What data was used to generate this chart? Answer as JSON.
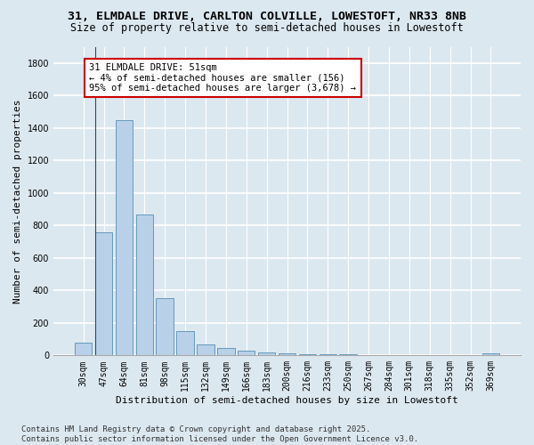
{
  "title_line1": "31, ELMDALE DRIVE, CARLTON COLVILLE, LOWESTOFT, NR33 8NB",
  "title_line2": "Size of property relative to semi-detached houses in Lowestoft",
  "xlabel": "Distribution of semi-detached houses by size in Lowestoft",
  "ylabel": "Number of semi-detached properties",
  "categories": [
    "30sqm",
    "47sqm",
    "64sqm",
    "81sqm",
    "98sqm",
    "115sqm",
    "132sqm",
    "149sqm",
    "166sqm",
    "183sqm",
    "200sqm",
    "216sqm",
    "233sqm",
    "250sqm",
    "267sqm",
    "284sqm",
    "301sqm",
    "318sqm",
    "335sqm",
    "352sqm",
    "369sqm"
  ],
  "values": [
    80,
    760,
    1450,
    865,
    355,
    150,
    68,
    48,
    28,
    20,
    15,
    10,
    8,
    5,
    3,
    2,
    1,
    1,
    1,
    1,
    14
  ],
  "bar_color": "#b8d0e8",
  "bar_edge_color": "#6699bb",
  "annotation_text": "31 ELMDALE DRIVE: 51sqm\n← 4% of semi-detached houses are smaller (156)\n95% of semi-detached houses are larger (3,678) →",
  "annotation_box_color": "#ffffff",
  "annotation_box_edge_color": "#cc0000",
  "ylim": [
    0,
    1900
  ],
  "yticks": [
    0,
    200,
    400,
    600,
    800,
    1000,
    1200,
    1400,
    1600,
    1800
  ],
  "background_color": "#dce8f0",
  "grid_color": "#ffffff",
  "footer_text": "Contains HM Land Registry data © Crown copyright and database right 2025.\nContains public sector information licensed under the Open Government Licence v3.0.",
  "title_fontsize": 9.5,
  "subtitle_fontsize": 8.5,
  "axis_label_fontsize": 8,
  "tick_fontsize": 7,
  "annotation_fontsize": 7.5,
  "footer_fontsize": 6.5
}
